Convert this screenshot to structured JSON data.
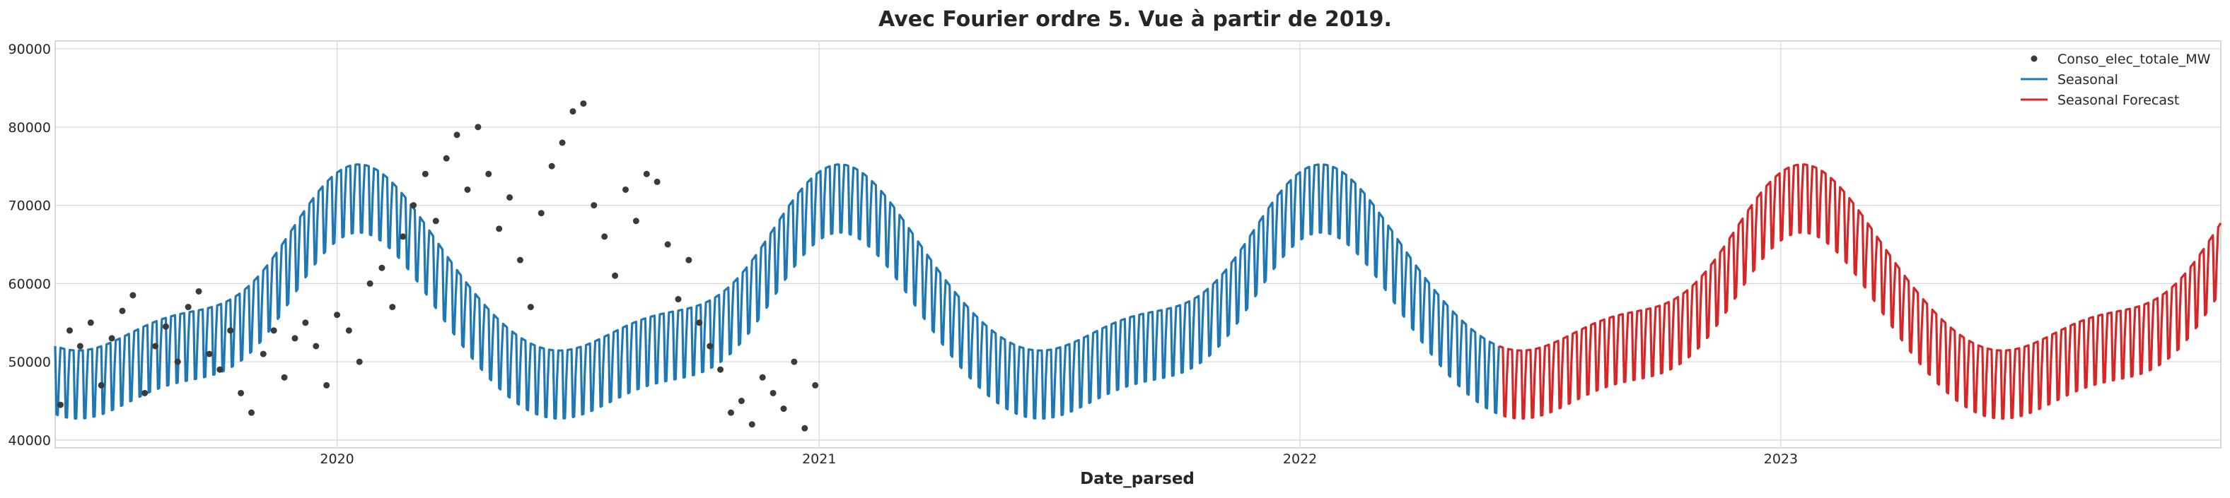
{
  "chart_data": {
    "type": "line",
    "title": "Avec Fourier ordre 5. Vue à partir de 2019.",
    "xlabel": "Date_parsed",
    "ylabel": "",
    "xlim": [
      "2019-06-01",
      "2023-12-01"
    ],
    "ylim": [
      39000,
      91000
    ],
    "x_ticks": [
      "2020",
      "2021",
      "2022",
      "2023"
    ],
    "x_tick_dates": [
      "2020-01-01",
      "2021-01-01",
      "2022-01-01",
      "2023-01-01"
    ],
    "y_ticks": [
      40000,
      50000,
      60000,
      70000,
      80000,
      90000
    ],
    "grid": true,
    "legend_position": "top-right",
    "series": [
      {
        "name": "Conso_elec_totale_MW",
        "kind": "scatter",
        "color": "#3a3a3a",
        "points": [
          [
            "2019-06-05",
            44500
          ],
          [
            "2019-06-12",
            54000
          ],
          [
            "2019-06-20",
            52000
          ],
          [
            "2019-06-28",
            55000
          ],
          [
            "2019-07-06",
            47000
          ],
          [
            "2019-07-14",
            53000
          ],
          [
            "2019-07-22",
            56500
          ],
          [
            "2019-07-30",
            58500
          ],
          [
            "2019-08-08",
            46000
          ],
          [
            "2019-08-16",
            52000
          ],
          [
            "2019-08-24",
            54500
          ],
          [
            "2019-09-02",
            50000
          ],
          [
            "2019-09-10",
            57000
          ],
          [
            "2019-09-18",
            59000
          ],
          [
            "2019-09-26",
            51000
          ],
          [
            "2019-10-04",
            49000
          ],
          [
            "2019-10-12",
            54000
          ],
          [
            "2019-10-20",
            46000
          ],
          [
            "2019-10-28",
            43500
          ],
          [
            "2019-11-06",
            51000
          ],
          [
            "2019-11-14",
            54000
          ],
          [
            "2019-11-22",
            48000
          ],
          [
            "2019-11-30",
            53000
          ],
          [
            "2019-12-08",
            55000
          ],
          [
            "2019-12-16",
            52000
          ],
          [
            "2019-12-24",
            47000
          ],
          [
            "2020-01-01",
            56000
          ],
          [
            "2020-01-10",
            54000
          ],
          [
            "2020-01-18",
            50000
          ],
          [
            "2020-01-26",
            60000
          ],
          [
            "2020-02-04",
            62000
          ],
          [
            "2020-02-12",
            57000
          ],
          [
            "2020-02-20",
            66000
          ],
          [
            "2020-02-28",
            70000
          ],
          [
            "2020-03-08",
            74000
          ],
          [
            "2020-03-16",
            68000
          ],
          [
            "2020-03-24",
            76000
          ],
          [
            "2020-04-01",
            79000
          ],
          [
            "2020-04-09",
            72000
          ],
          [
            "2020-04-17",
            80000
          ],
          [
            "2020-04-25",
            74000
          ],
          [
            "2020-05-03",
            67000
          ],
          [
            "2020-05-11",
            71000
          ],
          [
            "2020-05-19",
            63000
          ],
          [
            "2020-05-27",
            57000
          ],
          [
            "2020-06-04",
            69000
          ],
          [
            "2020-06-12",
            75000
          ],
          [
            "2020-06-20",
            78000
          ],
          [
            "2020-06-28",
            82000
          ],
          [
            "2020-07-06",
            83000
          ],
          [
            "2020-07-14",
            70000
          ],
          [
            "2020-07-22",
            66000
          ],
          [
            "2020-07-30",
            61000
          ],
          [
            "2020-08-07",
            72000
          ],
          [
            "2020-08-15",
            68000
          ],
          [
            "2020-08-23",
            74000
          ],
          [
            "2020-08-31",
            73000
          ],
          [
            "2020-09-08",
            65000
          ],
          [
            "2020-09-16",
            58000
          ],
          [
            "2020-09-24",
            63000
          ],
          [
            "2020-10-02",
            55000
          ],
          [
            "2020-10-10",
            52000
          ],
          [
            "2020-10-18",
            49000
          ],
          [
            "2020-10-26",
            43500
          ],
          [
            "2020-11-03",
            45000
          ],
          [
            "2020-11-11",
            42000
          ],
          [
            "2020-11-19",
            48000
          ],
          [
            "2020-11-27",
            46000
          ],
          [
            "2020-12-05",
            44000
          ],
          [
            "2020-12-13",
            50000
          ],
          [
            "2020-12-21",
            41500
          ],
          [
            "2020-12-29",
            47000
          ]
        ]
      },
      {
        "name": "Seasonal",
        "kind": "line",
        "color": "#1f77b4",
        "from": "2019-06-01",
        "to": "2022-06-01"
      },
      {
        "name": "Seasonal Forecast",
        "kind": "line",
        "color": "#d62728",
        "from": "2022-06-01",
        "to": "2023-12-01"
      }
    ]
  }
}
